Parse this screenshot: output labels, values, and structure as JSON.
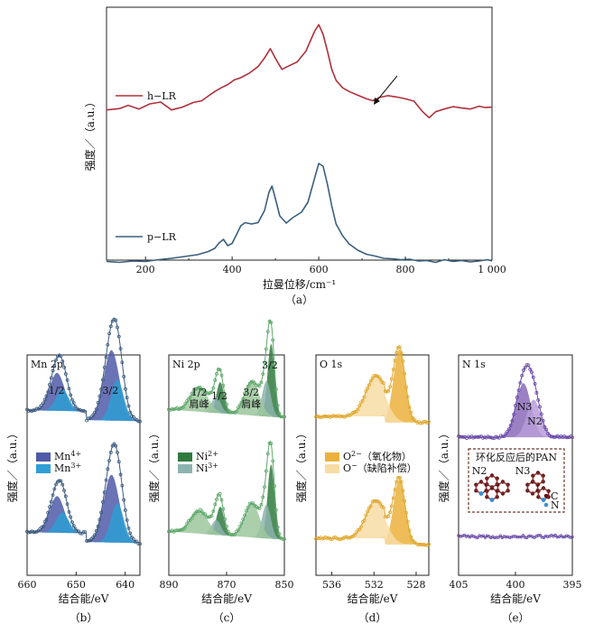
{
  "chart_data": [
    {
      "panel": "a",
      "type": "line",
      "xlabel": "拉曼位移/cm⁻¹",
      "ylabel": "强度／（a.u.）",
      "caption": "（a）",
      "xlim": [
        110,
        1000
      ],
      "xticks": [
        200,
        400,
        600,
        800
      ],
      "xtick_labels": [
        "200",
        "400",
        "600",
        "800"
      ],
      "xtick_last_label": "1 000",
      "series": [
        {
          "name": "h−LR",
          "color": "#b0303a",
          "x": [
            110,
            140,
            160,
            185,
            210,
            235,
            260,
            285,
            310,
            330,
            345,
            360,
            375,
            390,
            405,
            420,
            440,
            460,
            475,
            488,
            500,
            515,
            530,
            550,
            570,
            590,
            600,
            610,
            620,
            630,
            640,
            655,
            670,
            690,
            710,
            725,
            740,
            760,
            780,
            800,
            820,
            840,
            855,
            870,
            890,
            910,
            930,
            950,
            970,
            985,
            1000
          ],
          "y": [
            1.6,
            1.75,
            2.1,
            1.7,
            2.25,
            2.45,
            1.6,
            1.9,
            2.4,
            2.6,
            3.1,
            3.6,
            4.0,
            4.35,
            4.85,
            5.1,
            5.6,
            6.3,
            7.25,
            8.25,
            7.2,
            6.0,
            6.35,
            6.8,
            7.95,
            10.1,
            10.85,
            9.8,
            8.0,
            6.0,
            4.8,
            4.0,
            3.6,
            3.2,
            2.8,
            2.6,
            2.95,
            3.15,
            3.0,
            2.8,
            2.55,
            1.4,
            0.75,
            1.4,
            1.7,
            1.95,
            1.8,
            1.7,
            2.0,
            1.85,
            1.9
          ]
        },
        {
          "name": "p−LR",
          "color": "#3a5e7e",
          "x": [
            110,
            140,
            170,
            200,
            230,
            260,
            290,
            320,
            345,
            360,
            370,
            380,
            390,
            400,
            410,
            420,
            430,
            445,
            460,
            475,
            485,
            492,
            500,
            510,
            525,
            540,
            560,
            575,
            590,
            600,
            610,
            620,
            630,
            640,
            655,
            670,
            690,
            710,
            730,
            750,
            770,
            790,
            810,
            830,
            850,
            870,
            890,
            910,
            930,
            950,
            970,
            990,
            1000
          ],
          "y": [
            0.25,
            0.15,
            0.3,
            0.25,
            0.45,
            0.6,
            0.8,
            1.0,
            1.35,
            1.7,
            2.3,
            2.7,
            2.0,
            2.25,
            3.2,
            4.2,
            4.55,
            4.4,
            4.55,
            5.9,
            7.9,
            8.6,
            7.2,
            5.3,
            4.5,
            5.1,
            5.7,
            6.8,
            9.4,
            11.1,
            10.8,
            8.8,
            6.4,
            4.4,
            3.1,
            2.2,
            1.5,
            1.05,
            0.85,
            0.6,
            0.55,
            0.45,
            0.5,
            0.3,
            0.35,
            0.15,
            0.45,
            0.25,
            0.35,
            0.2,
            0.3,
            0.45,
            0.3
          ]
        }
      ],
      "annotation": "arrow pointing to shoulder near 720 cm⁻¹ on h−LR"
    },
    {
      "panel": "b",
      "type": "area",
      "title": "Mn 2p",
      "xlabel": "结合能/eV",
      "ylabel": "强度／（a.u.）",
      "caption": "（b）",
      "xlim": [
        660,
        637
      ],
      "xticks": [
        660,
        650,
        640
      ],
      "xtick_labels": [
        "660",
        "650",
        "640"
      ],
      "peak_labels": [
        {
          "text": "1/2",
          "x": 654.0
        },
        {
          "text": "3/2",
          "x": 643.0
        }
      ],
      "legend": [
        {
          "label": "Mn",
          "sup": "4+",
          "color": "#4f5ba8"
        },
        {
          "label": "Mn",
          "sup": "3+",
          "color": "#2e9ed4"
        }
      ],
      "components": [
        {
          "name": "Mn4+",
          "center": 642.8,
          "width": 1.6,
          "height_top": 5.2,
          "height_bottom": 5.0
        },
        {
          "name": "Mn3+",
          "center": 641.6,
          "width": 1.3,
          "height_top": 3.0,
          "height_bottom": 2.9
        },
        {
          "name": "Mn4+",
          "center": 653.9,
          "width": 1.5,
          "height_top": 2.8,
          "height_bottom": 2.7
        },
        {
          "name": "Mn3+",
          "center": 652.8,
          "width": 1.3,
          "height_top": 1.6,
          "height_bottom": 1.5
        }
      ]
    },
    {
      "panel": "c",
      "type": "area",
      "title": "Ni 2p",
      "xlabel": "结合能/eV",
      "ylabel": "强度／（a.u.）",
      "caption": "（c）",
      "xlim": [
        890,
        850
      ],
      "xticks": [
        890,
        870,
        850
      ],
      "xtick_labels": [
        "890",
        "870",
        "850"
      ],
      "peak_labels": [
        {
          "text": "1/2",
          "sub": "肩峰",
          "x": 879.5
        },
        {
          "text": "1/2",
          "x": 872.5
        },
        {
          "text": "3/2",
          "sub": "肩峰",
          "x": 861.5
        },
        {
          "text": "3/2",
          "x": 855.0
        }
      ],
      "legend": [
        {
          "label": "Ni",
          "sup": "2+",
          "color": "#2f7a3e"
        },
        {
          "label": "Ni",
          "sup": "3+",
          "color": "#8db3ae"
        }
      ],
      "components": [
        {
          "name": "Ni2+",
          "center": 854.6,
          "width": 1.2,
          "height_top": 5.4,
          "height_bottom": 5.5
        },
        {
          "name": "Ni3+",
          "center": 856.2,
          "width": 1.5,
          "height_top": 2.6,
          "height_bottom": 2.5
        },
        {
          "name": "sat",
          "center": 861.2,
          "width": 2.6,
          "height_top": 2.5,
          "height_bottom": 2.5
        },
        {
          "name": "Ni2+",
          "center": 872.2,
          "width": 1.3,
          "height_top": 2.3,
          "height_bottom": 2.1
        },
        {
          "name": "Ni3+",
          "center": 873.6,
          "width": 1.6,
          "height_top": 1.2,
          "height_bottom": 1.1
        },
        {
          "name": "sat",
          "center": 879.5,
          "width": 3.0,
          "height_top": 1.8,
          "height_bottom": 1.7
        }
      ]
    },
    {
      "panel": "d",
      "type": "area",
      "title": "O  1s",
      "xlabel": "结合能/eV",
      "ylabel": "强度／（a.u.）",
      "caption": "（d）",
      "xlim": [
        537.5,
        526.8
      ],
      "xticks": [
        536,
        532,
        528
      ],
      "xtick_labels": [
        "536",
        "532",
        "528"
      ],
      "legend": [
        {
          "label": "O",
          "sup": "2−",
          "text": "（氧化物）",
          "color": "#ebb13c"
        },
        {
          "label": "O",
          "sup": "−",
          "text": "（缺陷补偿）",
          "color": "#f7dca5"
        }
      ],
      "components": [
        {
          "name": "O2-",
          "center": 529.6,
          "width": 0.55,
          "height_top": 5.4,
          "height_bottom": 4.8
        },
        {
          "name": "O-",
          "center": 531.8,
          "width": 0.95,
          "height_top": 3.0,
          "height_bottom": 2.8
        }
      ]
    },
    {
      "panel": "e",
      "type": "area",
      "title": "N  1s",
      "xlabel": "结合能/eV",
      "ylabel": "强度／（a.u.）",
      "caption": "（e）",
      "xlim": [
        405,
        395
      ],
      "xticks": [
        405,
        400,
        395
      ],
      "xtick_labels": [
        "405",
        "400",
        "395"
      ],
      "peak_labels": [
        {
          "text": "N3",
          "x": 399.2
        },
        {
          "text": "N2",
          "x": 398.3
        }
      ],
      "components": [
        {
          "name": "N3",
          "center": 399.3,
          "width": 0.65,
          "height_top": 4.6
        },
        {
          "name": "N2",
          "center": 398.4,
          "width": 0.6,
          "height_top": 3.2
        }
      ],
      "inset": {
        "title": "环化反应后的PAN",
        "labels": [
          "N2",
          "N3"
        ],
        "legend": [
          {
            "label": "C",
            "color": "#5a1717"
          },
          {
            "label": "N",
            "color": "#3c8fd6"
          }
        ]
      }
    }
  ]
}
